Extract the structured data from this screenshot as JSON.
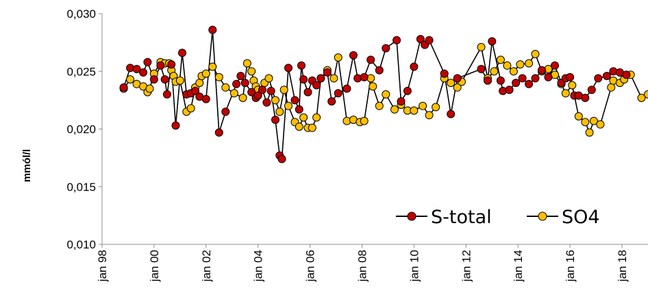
{
  "chart_data": {
    "type": "line",
    "title": "",
    "xlabel": "",
    "ylabel": "mmól/l",
    "ylim": [
      0.01,
      0.03
    ],
    "xlim": [
      "1998-01",
      "2019-01"
    ],
    "grid": false,
    "legend_placement": "bottom-right",
    "y_ticks": [
      "0,030",
      "0,025",
      "0,020",
      "0,015",
      "0,010"
    ],
    "x_ticks": [
      "jan 98",
      "jan 00",
      "jan 02",
      "jan 04",
      "jan 06",
      "jan 08",
      "jan 10",
      "jan 12",
      "jan 14",
      "jan 16",
      "jan 18"
    ],
    "series": [
      {
        "name": "S-total",
        "color": "#c00000",
        "points": [
          [
            "1998-11",
            0.0236
          ],
          [
            "1999-02",
            0.0253
          ],
          [
            "1999-05",
            0.0252
          ],
          [
            "1999-08",
            0.0249
          ],
          [
            "1999-10",
            0.0258
          ],
          [
            "2000-01",
            0.0243
          ],
          [
            "2000-04",
            0.0255
          ],
          [
            "2000-06",
            0.0243
          ],
          [
            "2000-07",
            0.023
          ],
          [
            "2000-09",
            0.0256
          ],
          [
            "2000-11",
            0.0203
          ],
          [
            "2001-02",
            0.0266
          ],
          [
            "2001-04",
            0.023
          ],
          [
            "2001-06",
            0.0231
          ],
          [
            "2001-08",
            0.0233
          ],
          [
            "2001-10",
            0.0228
          ],
          [
            "2002-01",
            0.0226
          ],
          [
            "2002-04",
            0.0286
          ],
          [
            "2002-07",
            0.0197
          ],
          [
            "2002-10",
            0.0215
          ],
          [
            "2003-03",
            0.0239
          ],
          [
            "2003-05",
            0.0246
          ],
          [
            "2003-07",
            0.024
          ],
          [
            "2003-10",
            0.0232
          ],
          [
            "2003-12",
            0.0227
          ],
          [
            "2004-01",
            0.0229
          ],
          [
            "2004-03",
            0.0234
          ],
          [
            "2004-05",
            0.0223
          ],
          [
            "2004-07",
            0.0233
          ],
          [
            "2004-09",
            0.0208
          ],
          [
            "2004-11",
            0.0177
          ],
          [
            "2004-12",
            0.0174
          ],
          [
            "2005-03",
            0.0253
          ],
          [
            "2005-06",
            0.0225
          ],
          [
            "2005-08",
            0.0217
          ],
          [
            "2005-09",
            0.0255
          ],
          [
            "2005-10",
            0.0243
          ],
          [
            "2005-12",
            0.0232
          ],
          [
            "2006-02",
            0.0242
          ],
          [
            "2006-04",
            0.0238
          ],
          [
            "2006-06",
            0.0244
          ],
          [
            "2006-09",
            0.0249
          ],
          [
            "2006-11",
            0.0224
          ],
          [
            "2007-02",
            0.0231
          ],
          [
            "2007-06",
            0.0235
          ],
          [
            "2007-09",
            0.0264
          ],
          [
            "2007-11",
            0.0244
          ],
          [
            "2008-02",
            0.0245
          ],
          [
            "2008-05",
            0.026
          ],
          [
            "2008-09",
            0.0251
          ],
          [
            "2008-12",
            0.027
          ],
          [
            "2009-05",
            0.0277
          ],
          [
            "2009-07",
            0.0224
          ],
          [
            "2009-10",
            0.0233
          ],
          [
            "2010-01",
            0.0254
          ],
          [
            "2010-04",
            0.0278
          ],
          [
            "2010-06",
            0.0273
          ],
          [
            "2010-08",
            0.0277
          ],
          [
            "2011-03",
            0.0248
          ],
          [
            "2011-06",
            0.0213
          ],
          [
            "2011-09",
            0.0244
          ],
          [
            "2012-08",
            0.0252
          ],
          [
            "2012-11",
            0.0242
          ],
          [
            "2013-01",
            0.0276
          ],
          [
            "2013-05",
            0.0242
          ],
          [
            "2013-06",
            0.0233
          ],
          [
            "2013-09",
            0.0234
          ],
          [
            "2013-12",
            0.024
          ],
          [
            "2014-03",
            0.0244
          ],
          [
            "2014-06",
            0.0239
          ],
          [
            "2014-09",
            0.0244
          ],
          [
            "2014-12",
            0.0251
          ],
          [
            "2015-03",
            0.0245
          ],
          [
            "2015-06",
            0.0255
          ],
          [
            "2015-09",
            0.024
          ],
          [
            "2015-11",
            0.0244
          ],
          [
            "2016-01",
            0.0245
          ],
          [
            "2016-03",
            0.0229
          ],
          [
            "2016-05",
            0.0229
          ],
          [
            "2016-08",
            0.0227
          ],
          [
            "2016-11",
            0.0234
          ],
          [
            "2017-02",
            0.0244
          ],
          [
            "2017-06",
            0.0246
          ],
          [
            "2017-09",
            0.025
          ],
          [
            "2017-12",
            0.0249
          ],
          [
            "2018-03",
            0.0247
          ]
        ]
      },
      {
        "name": "SO4",
        "color": "#ffc000",
        "points": [
          [
            "1998-11",
            0.0235
          ],
          [
            "1999-02",
            0.0243
          ],
          [
            "1999-05",
            0.0239
          ],
          [
            "1999-08",
            0.0237
          ],
          [
            "1999-10",
            0.0232
          ],
          [
            "1999-11",
            0.0235
          ],
          [
            "2000-01",
            0.0248
          ],
          [
            "2000-04",
            0.0258
          ],
          [
            "2000-06",
            0.0257
          ],
          [
            "2000-08",
            0.0257
          ],
          [
            "2000-09",
            0.0251
          ],
          [
            "2000-10",
            0.0246
          ],
          [
            "2000-11",
            0.0241
          ],
          [
            "2001-01",
            0.0242
          ],
          [
            "2001-04",
            0.0215
          ],
          [
            "2001-06",
            0.0218
          ],
          [
            "2001-08",
            0.0236
          ],
          [
            "2001-10",
            0.024
          ],
          [
            "2001-11",
            0.0246
          ],
          [
            "2002-01",
            0.0248
          ],
          [
            "2002-04",
            0.0254
          ],
          [
            "2002-07",
            0.0245
          ],
          [
            "2002-10",
            0.0236
          ],
          [
            "2003-02",
            0.0231
          ],
          [
            "2003-06",
            0.0227
          ],
          [
            "2003-08",
            0.0257
          ],
          [
            "2003-10",
            0.025
          ],
          [
            "2003-11",
            0.0242
          ],
          [
            "2003-12",
            0.0237
          ],
          [
            "2004-01",
            0.0234
          ],
          [
            "2004-04",
            0.024
          ],
          [
            "2004-06",
            0.0244
          ],
          [
            "2004-09",
            0.0225
          ],
          [
            "2004-11",
            0.0215
          ],
          [
            "2005-01",
            0.0234
          ],
          [
            "2005-03",
            0.022
          ],
          [
            "2005-06",
            0.0206
          ],
          [
            "2005-08",
            0.0202
          ],
          [
            "2005-10",
            0.021
          ],
          [
            "2005-12",
            0.0201
          ],
          [
            "2006-02",
            0.0201
          ],
          [
            "2006-04",
            0.021
          ],
          [
            "2006-06",
            0.0244
          ],
          [
            "2006-09",
            0.0251
          ],
          [
            "2006-12",
            0.0244
          ],
          [
            "2007-02",
            0.0262
          ],
          [
            "2007-06",
            0.0207
          ],
          [
            "2007-09",
            0.0208
          ],
          [
            "2007-12",
            0.0206
          ],
          [
            "2008-02",
            0.0207
          ],
          [
            "2008-05",
            0.0244
          ],
          [
            "2008-06",
            0.0237
          ],
          [
            "2008-09",
            0.022
          ],
          [
            "2008-12",
            0.023
          ],
          [
            "2009-04",
            0.0217
          ],
          [
            "2009-07",
            0.0221
          ],
          [
            "2009-10",
            0.0216
          ],
          [
            "2010-01",
            0.0216
          ],
          [
            "2010-05",
            0.022
          ],
          [
            "2010-08",
            0.0212
          ],
          [
            "2010-11",
            0.0219
          ],
          [
            "2011-03",
            0.0244
          ],
          [
            "2011-06",
            0.024
          ],
          [
            "2011-09",
            0.0236
          ],
          [
            "2011-11",
            0.0241
          ],
          [
            "2012-08",
            0.0271
          ],
          [
            "2012-11",
            0.0244
          ],
          [
            "2013-02",
            0.025
          ],
          [
            "2013-05",
            0.026
          ],
          [
            "2013-08",
            0.0255
          ],
          [
            "2013-11",
            0.025
          ],
          [
            "2014-02",
            0.0256
          ],
          [
            "2014-06",
            0.0257
          ],
          [
            "2014-09",
            0.0265
          ],
          [
            "2014-12",
            0.025
          ],
          [
            "2015-03",
            0.0252
          ],
          [
            "2015-06",
            0.0247
          ],
          [
            "2015-09",
            0.0239
          ],
          [
            "2015-11",
            0.0231
          ],
          [
            "2016-02",
            0.0238
          ],
          [
            "2016-05",
            0.0211
          ],
          [
            "2016-08",
            0.0206
          ],
          [
            "2016-10",
            0.0197
          ],
          [
            "2016-12",
            0.0207
          ],
          [
            "2017-03",
            0.0204
          ],
          [
            "2017-08",
            0.0236
          ],
          [
            "2017-09",
            0.0242
          ],
          [
            "2017-12",
            0.024
          ],
          [
            "2018-02",
            0.0243
          ],
          [
            "2018-05",
            0.0247
          ],
          [
            "2018-10",
            0.0227
          ],
          [
            "2019-01",
            0.023
          ]
        ]
      }
    ]
  }
}
